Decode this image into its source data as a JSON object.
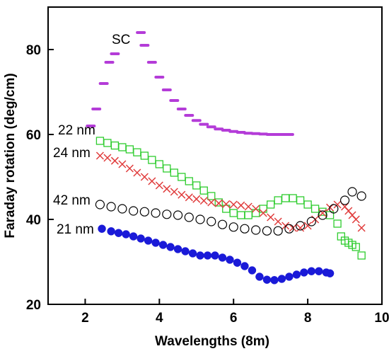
{
  "chart_data": {
    "type": "scatter",
    "title": "",
    "xlabel": "Wavelengths (8m)",
    "ylabel": "Faraday rotation (deg/cm)",
    "xlim": [
      1,
      10
    ],
    "ylim": [
      20,
      90
    ],
    "xticks": [
      2,
      4,
      6,
      8,
      10
    ],
    "yticks": [
      20,
      40,
      60,
      80
    ],
    "grid": false,
    "legend": "none",
    "series": [
      {
        "name": "SC",
        "marker": "dash",
        "color": "#b43cd8",
        "points": [
          [
            2.15,
            62
          ],
          [
            2.3,
            66
          ],
          [
            2.5,
            72
          ],
          [
            2.65,
            77
          ],
          [
            2.8,
            79
          ],
          [
            3.5,
            84
          ],
          [
            3.6,
            81
          ],
          [
            3.8,
            77
          ],
          [
            4.0,
            73.5
          ],
          [
            4.2,
            70.5
          ],
          [
            4.4,
            68
          ],
          [
            4.6,
            66
          ],
          [
            4.8,
            64.5
          ],
          [
            5.0,
            63.3
          ],
          [
            5.2,
            62.4
          ],
          [
            5.4,
            61.8
          ],
          [
            5.6,
            61.3
          ],
          [
            5.8,
            61
          ],
          [
            6.0,
            60.7
          ],
          [
            6.2,
            60.5
          ],
          [
            6.4,
            60.3
          ],
          [
            6.6,
            60.2
          ],
          [
            6.8,
            60.1
          ],
          [
            7.0,
            60
          ],
          [
            7.2,
            60
          ],
          [
            7.4,
            60
          ],
          [
            7.5,
            60
          ]
        ]
      },
      {
        "name": "22 nm",
        "marker": "square",
        "color": "#2ecc2e",
        "points": [
          [
            2.4,
            58.5
          ],
          [
            2.6,
            58
          ],
          [
            2.8,
            57.4
          ],
          [
            3.0,
            57
          ],
          [
            3.2,
            56.5
          ],
          [
            3.4,
            55.8
          ],
          [
            3.6,
            55
          ],
          [
            3.8,
            54
          ],
          [
            4.0,
            53
          ],
          [
            4.2,
            52
          ],
          [
            4.4,
            51
          ],
          [
            4.6,
            50
          ],
          [
            4.8,
            49
          ],
          [
            5.0,
            48
          ],
          [
            5.2,
            46.8
          ],
          [
            5.4,
            45.5
          ],
          [
            5.6,
            44
          ],
          [
            5.8,
            42.5
          ],
          [
            6.0,
            41.5
          ],
          [
            6.2,
            41
          ],
          [
            6.4,
            41
          ],
          [
            6.6,
            41.5
          ],
          [
            6.8,
            42.5
          ],
          [
            7.0,
            43.5
          ],
          [
            7.2,
            44.5
          ],
          [
            7.4,
            45
          ],
          [
            7.6,
            45
          ],
          [
            7.8,
            44.5
          ],
          [
            8.0,
            43.5
          ],
          [
            8.2,
            42.5
          ],
          [
            8.4,
            41.8
          ],
          [
            8.6,
            41
          ],
          [
            8.8,
            39
          ],
          [
            8.9,
            36
          ],
          [
            9.0,
            35
          ],
          [
            9.1,
            34.5
          ],
          [
            9.2,
            34
          ],
          [
            9.3,
            33.5
          ],
          [
            9.45,
            31.5
          ]
        ]
      },
      {
        "name": "24 nm",
        "marker": "x",
        "color": "#e03c3c",
        "points": [
          [
            2.4,
            55
          ],
          [
            2.6,
            54.5
          ],
          [
            2.8,
            53.8
          ],
          [
            3.0,
            53
          ],
          [
            3.2,
            52
          ],
          [
            3.4,
            51
          ],
          [
            3.6,
            50
          ],
          [
            3.8,
            49
          ],
          [
            4.0,
            48
          ],
          [
            4.2,
            47.2
          ],
          [
            4.4,
            46.5
          ],
          [
            4.6,
            45.8
          ],
          [
            4.8,
            45.2
          ],
          [
            5.0,
            44.8
          ],
          [
            5.2,
            44.4
          ],
          [
            5.4,
            44
          ],
          [
            5.6,
            43.8
          ],
          [
            5.8,
            43.6
          ],
          [
            6.0,
            43.5
          ],
          [
            6.2,
            43.3
          ],
          [
            6.4,
            43
          ],
          [
            6.6,
            42.5
          ],
          [
            6.8,
            41.5
          ],
          [
            7.0,
            40.5
          ],
          [
            7.2,
            39.5
          ],
          [
            7.4,
            38.5
          ],
          [
            7.6,
            38
          ],
          [
            7.8,
            38
          ],
          [
            8.0,
            38.5
          ],
          [
            8.2,
            40
          ],
          [
            8.4,
            41.5
          ],
          [
            8.6,
            42.8
          ],
          [
            8.8,
            43.5
          ],
          [
            9.0,
            43
          ],
          [
            9.1,
            42
          ],
          [
            9.2,
            41
          ],
          [
            9.3,
            40
          ],
          [
            9.45,
            38
          ]
        ]
      },
      {
        "name": "42 nm",
        "marker": "circle-open",
        "color": "#000000",
        "points": [
          [
            2.4,
            43.5
          ],
          [
            2.7,
            43
          ],
          [
            3.0,
            42.5
          ],
          [
            3.3,
            42
          ],
          [
            3.6,
            41.8
          ],
          [
            3.9,
            41.5
          ],
          [
            4.2,
            41.2
          ],
          [
            4.5,
            41
          ],
          [
            4.8,
            40.5
          ],
          [
            5.1,
            40
          ],
          [
            5.4,
            39.5
          ],
          [
            5.7,
            38.8
          ],
          [
            6.0,
            38.2
          ],
          [
            6.3,
            37.8
          ],
          [
            6.6,
            37.5
          ],
          [
            6.9,
            37.3
          ],
          [
            7.2,
            37.3
          ],
          [
            7.5,
            37.8
          ],
          [
            7.8,
            38.5
          ],
          [
            8.1,
            39.5
          ],
          [
            8.4,
            41
          ],
          [
            8.7,
            42.5
          ],
          [
            9.0,
            44.5
          ],
          [
            9.2,
            46.5
          ],
          [
            9.45,
            45.5
          ]
        ]
      },
      {
        "name": "21 nm",
        "marker": "circle-filled",
        "color": "#1a1ad8",
        "points": [
          [
            2.45,
            37.8
          ],
          [
            2.7,
            37.2
          ],
          [
            2.9,
            36.8
          ],
          [
            3.1,
            36.5
          ],
          [
            3.3,
            36
          ],
          [
            3.5,
            35.5
          ],
          [
            3.7,
            35
          ],
          [
            3.9,
            34.5
          ],
          [
            4.1,
            34
          ],
          [
            4.3,
            33.5
          ],
          [
            4.5,
            33
          ],
          [
            4.7,
            32.5
          ],
          [
            4.9,
            32
          ],
          [
            5.1,
            31.5
          ],
          [
            5.3,
            31.5
          ],
          [
            5.5,
            31.5
          ],
          [
            5.7,
            31
          ],
          [
            5.9,
            30.5
          ],
          [
            6.1,
            29.8
          ],
          [
            6.3,
            29
          ],
          [
            6.5,
            28
          ],
          [
            6.7,
            26.5
          ],
          [
            6.9,
            25.8
          ],
          [
            7.1,
            25.7
          ],
          [
            7.3,
            26
          ],
          [
            7.5,
            26.5
          ],
          [
            7.7,
            27
          ],
          [
            7.9,
            27.5
          ],
          [
            8.1,
            27.8
          ],
          [
            8.3,
            27.8
          ],
          [
            8.5,
            27.5
          ],
          [
            8.6,
            27.3
          ]
        ]
      }
    ]
  }
}
